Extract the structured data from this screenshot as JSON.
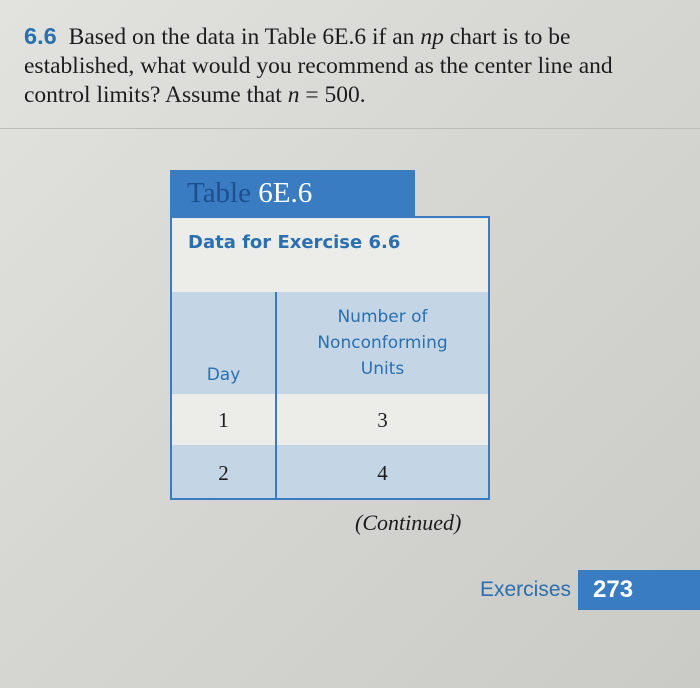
{
  "problem": {
    "number": "6.6",
    "text_1": "Based on the data in Table 6E.6 if an ",
    "np": "np",
    "text_2": " chart is to be established, what would you recommend as the center line and control limits? Assume that ",
    "n": "n",
    "text_3": " = 500."
  },
  "table": {
    "label_word": "Table",
    "label_num": "6E.6",
    "caption": "Data for Exercise 6.6",
    "headers": [
      "Day",
      "Number of Nonconforming Units"
    ],
    "rows": [
      [
        "1",
        "3"
      ],
      [
        "2",
        "4"
      ]
    ],
    "continued": "(Continued)"
  },
  "footer": {
    "section": "Exercises",
    "page": "273"
  },
  "colors": {
    "accent": "#3a7cc2",
    "row_shade": "#c4d6e6"
  }
}
